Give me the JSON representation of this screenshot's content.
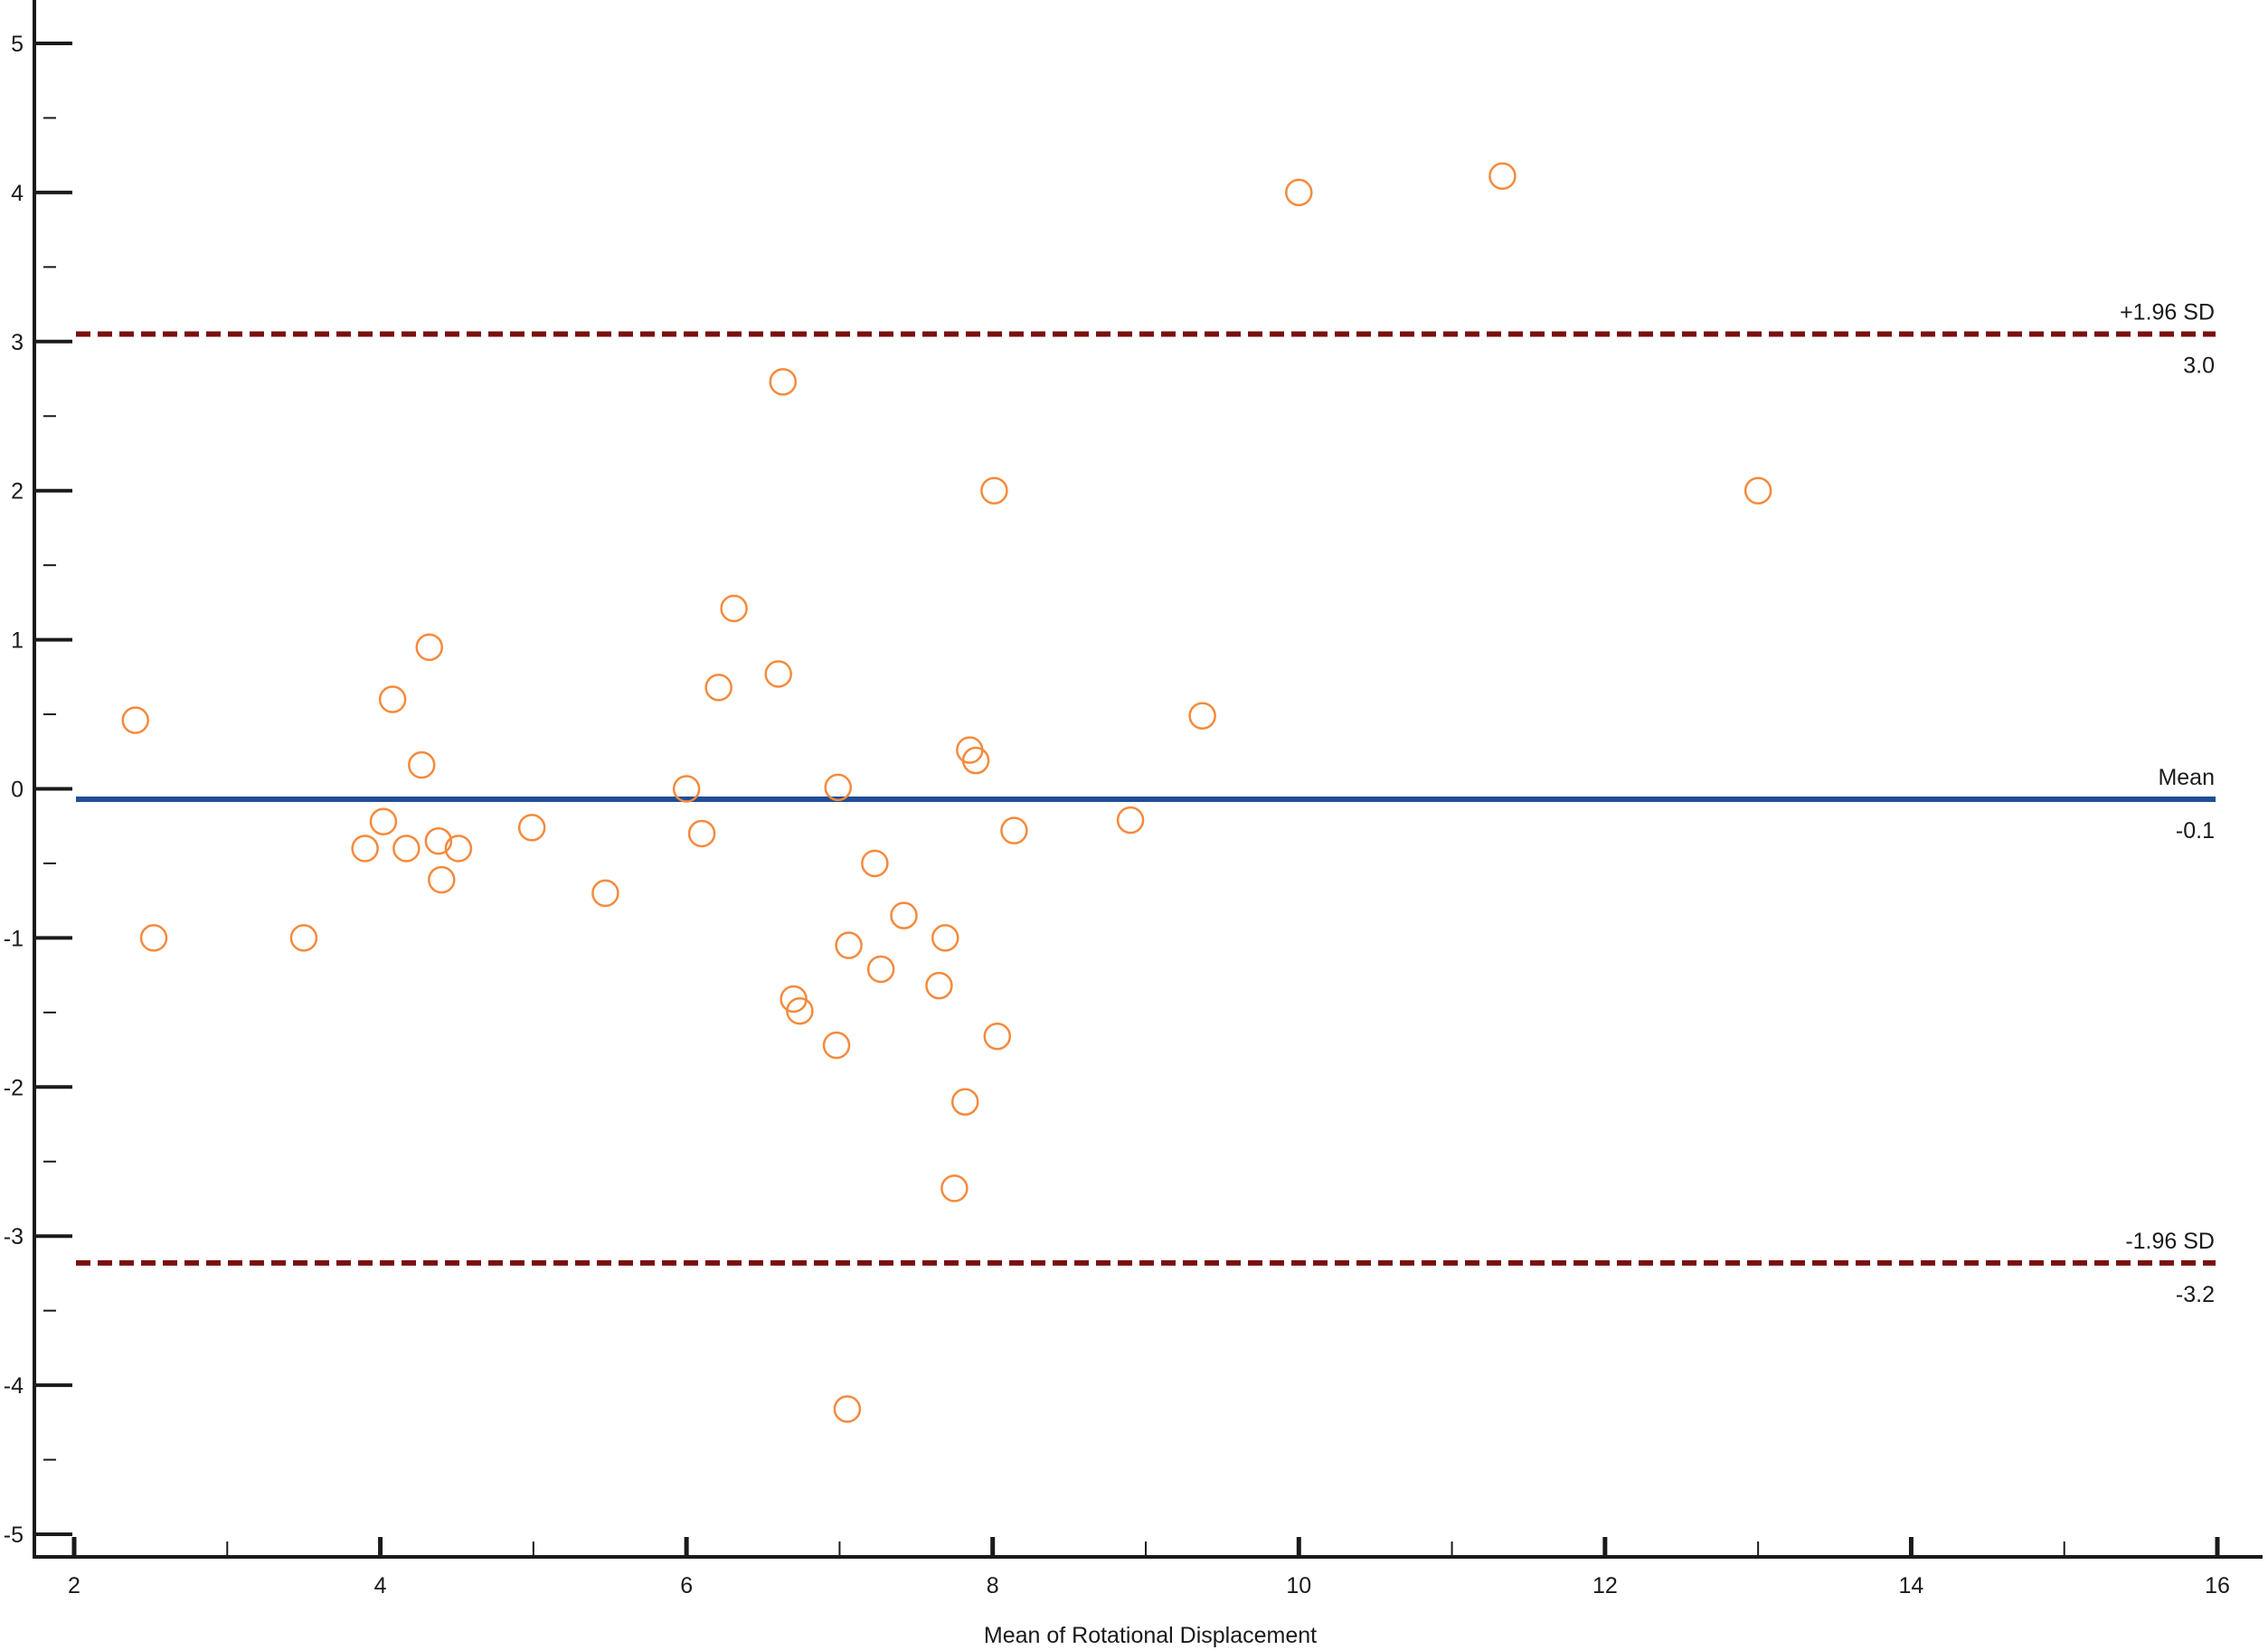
{
  "chart_data": {
    "type": "scatter",
    "title": "",
    "xlabel": "Mean of Rotational Displacement",
    "ylabel": "",
    "xlim": [
      2,
      16
    ],
    "ylim": [
      -5,
      5
    ],
    "x_ticks": [
      "2",
      "4",
      "6",
      "8",
      "10",
      "12",
      "14",
      "16"
    ],
    "y_ticks": [
      "-5",
      "-4",
      "-3",
      "-2",
      "-1",
      "0",
      "1",
      "2",
      "3",
      "4",
      "5"
    ],
    "grid": false,
    "marker_color": "#f58a3c",
    "reference_lines": [
      {
        "label": "+1.96 SD",
        "value_label": "3.0",
        "y": 3.05,
        "style": "dashed",
        "color": "#7a1010"
      },
      {
        "label": "Mean",
        "value_label": "-0.1",
        "y": -0.07,
        "style": "solid",
        "color": "#1f4e96"
      },
      {
        "label": "-1.96 SD",
        "value_label": "-3.2",
        "y": -3.18,
        "style": "dashed",
        "color": "#7a1010"
      }
    ],
    "points": [
      {
        "x": 2.4,
        "y": 0.46
      },
      {
        "x": 2.52,
        "y": -1.0
      },
      {
        "x": 3.5,
        "y": -1.0
      },
      {
        "x": 3.9,
        "y": -0.4
      },
      {
        "x": 4.02,
        "y": -0.22
      },
      {
        "x": 4.08,
        "y": 0.6
      },
      {
        "x": 4.17,
        "y": -0.4
      },
      {
        "x": 4.27,
        "y": 0.16
      },
      {
        "x": 4.32,
        "y": 0.95
      },
      {
        "x": 4.38,
        "y": -0.35
      },
      {
        "x": 4.4,
        "y": -0.61
      },
      {
        "x": 4.51,
        "y": -0.4
      },
      {
        "x": 4.99,
        "y": -0.26
      },
      {
        "x": 5.47,
        "y": -0.7
      },
      {
        "x": 6.0,
        "y": 0.0
      },
      {
        "x": 6.1,
        "y": -0.3
      },
      {
        "x": 6.21,
        "y": 0.68
      },
      {
        "x": 6.31,
        "y": 1.21
      },
      {
        "x": 6.6,
        "y": 0.77
      },
      {
        "x": 6.63,
        "y": 2.73
      },
      {
        "x": 6.7,
        "y": -1.41
      },
      {
        "x": 6.74,
        "y": -1.49
      },
      {
        "x": 6.98,
        "y": -1.72
      },
      {
        "x": 6.99,
        "y": 0.01
      },
      {
        "x": 7.05,
        "y": -4.16
      },
      {
        "x": 7.06,
        "y": -1.05
      },
      {
        "x": 7.23,
        "y": -0.5
      },
      {
        "x": 7.27,
        "y": -1.21
      },
      {
        "x": 7.42,
        "y": -0.85
      },
      {
        "x": 7.65,
        "y": -1.32
      },
      {
        "x": 7.69,
        "y": -1.0
      },
      {
        "x": 7.75,
        "y": -2.68
      },
      {
        "x": 7.82,
        "y": -2.1
      },
      {
        "x": 7.85,
        "y": 0.26
      },
      {
        "x": 7.89,
        "y": 0.19
      },
      {
        "x": 8.01,
        "y": 2.0
      },
      {
        "x": 8.03,
        "y": -1.66
      },
      {
        "x": 8.14,
        "y": -0.28
      },
      {
        "x": 8.9,
        "y": -0.21
      },
      {
        "x": 9.37,
        "y": 0.49
      },
      {
        "x": 10.0,
        "y": 4.0
      },
      {
        "x": 11.33,
        "y": 4.11
      },
      {
        "x": 13.0,
        "y": 2.0
      }
    ]
  }
}
